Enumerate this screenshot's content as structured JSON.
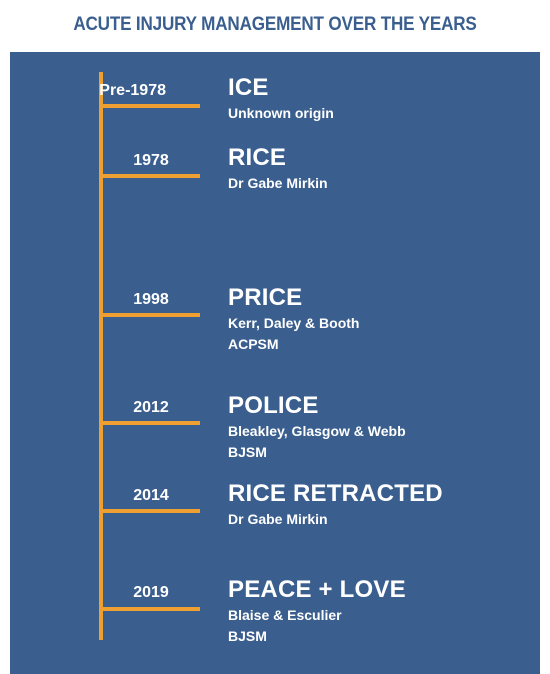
{
  "title": "ACUTE INJURY MANAGEMENT OVER THE YEARS",
  "colors": {
    "panel": "#3a5f8f",
    "timeline": "#f0a030",
    "text": "#ffffff"
  },
  "entries": [
    {
      "year": "Pre-1978",
      "name": "ICE",
      "details": [
        "Unknown origin"
      ]
    },
    {
      "year": "1978",
      "name": "RICE",
      "details": [
        "Dr Gabe Mirkin"
      ]
    },
    {
      "year": "1998",
      "name": "PRICE",
      "details": [
        "Kerr, Daley & Booth",
        "ACPSM"
      ]
    },
    {
      "year": "2012",
      "name": "POLICE",
      "details": [
        "Bleakley, Glasgow & Webb",
        "BJSM"
      ]
    },
    {
      "year": "2014",
      "name": "RICE RETRACTED",
      "details": [
        "Dr Gabe Mirkin"
      ]
    },
    {
      "year": "2019",
      "name": "PEACE + LOVE",
      "details": [
        "Blaise & Esculier",
        "BJSM"
      ]
    }
  ]
}
